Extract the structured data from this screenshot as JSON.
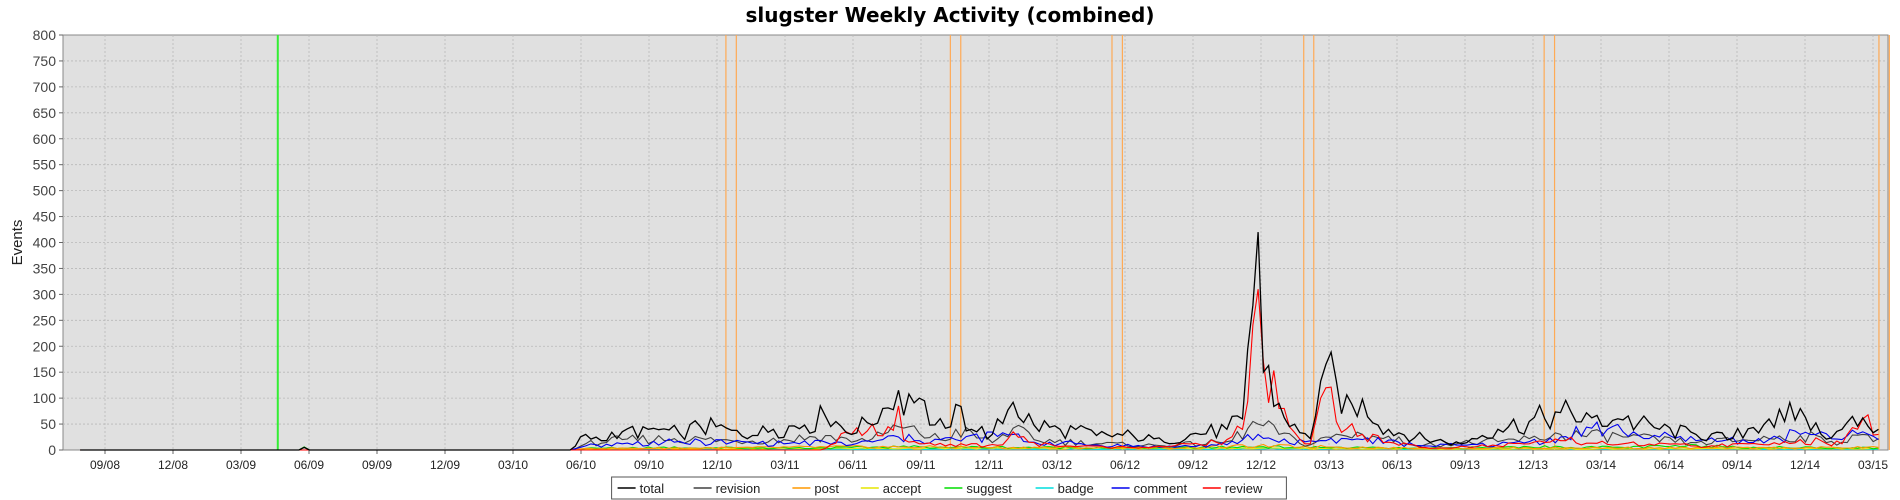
{
  "chart_data": {
    "type": "line",
    "title": "slugster Weekly Activity (combined)",
    "xlabel": "",
    "ylabel": "Events",
    "ylim": [
      0,
      800
    ],
    "y_ticks": [
      0,
      50,
      100,
      150,
      200,
      250,
      300,
      350,
      400,
      450,
      500,
      550,
      600,
      650,
      700,
      750,
      800
    ],
    "grid": true,
    "legend_position": "bottom",
    "x_tick_labels": [
      "09/08",
      "12/08",
      "03/09",
      "06/09",
      "09/09",
      "12/09",
      "03/10",
      "06/10",
      "09/10",
      "12/10",
      "03/11",
      "06/11",
      "09/11",
      "12/11",
      "03/12",
      "06/12",
      "09/12",
      "12/12",
      "03/13",
      "06/13",
      "09/13",
      "12/13",
      "03/14",
      "06/14",
      "09/14",
      "12/14",
      "03/15"
    ],
    "x_start_tick": "09/08",
    "x_end": "03/15",
    "week_count": 345,
    "marker_lines": {
      "green": [
        "2009-04-20"
      ],
      "orange": [
        "2010-12-13",
        "2010-12-27",
        "2011-10-10",
        "2011-10-24",
        "2012-05-14",
        "2012-05-28",
        "2013-01-28",
        "2013-02-11",
        "2013-12-16",
        "2013-12-30",
        "2015-03-09",
        "2015-03-23"
      ]
    },
    "colors": {
      "total": "#000000",
      "revision": "#404040",
      "post": "#ff9900",
      "accept": "#e6e600",
      "suggest": "#00dd00",
      "badge": "#00dddd",
      "comment": "#0000ee",
      "review": "#ff0000"
    },
    "series": [
      {
        "name": "total",
        "keypoints": [
          [
            0,
            0
          ],
          [
            60,
            0
          ],
          [
            62,
            5
          ],
          [
            64,
            0
          ],
          [
            136,
            0
          ],
          [
            140,
            30
          ],
          [
            145,
            18
          ],
          [
            150,
            35
          ],
          [
            158,
            40
          ],
          [
            166,
            32
          ],
          [
            172,
            45
          ],
          [
            180,
            38
          ],
          [
            186,
            28
          ],
          [
            192,
            40
          ],
          [
            200,
            48
          ],
          [
            207,
            65
          ],
          [
            214,
            30
          ],
          [
            222,
            80
          ],
          [
            226,
            115
          ],
          [
            232,
            100
          ],
          [
            236,
            48
          ],
          [
            240,
            42
          ],
          [
            242,
            88
          ],
          [
            247,
            40
          ],
          [
            253,
            30
          ],
          [
            258,
            92
          ],
          [
            264,
            48
          ],
          [
            272,
            40
          ],
          [
            282,
            28
          ],
          [
            292,
            28
          ],
          [
            300,
            15
          ],
          [
            308,
            30
          ],
          [
            318,
            40
          ],
          [
            322,
            60
          ],
          [
            326,
            420
          ],
          [
            328,
            150
          ],
          [
            332,
            90
          ],
          [
            335,
            45
          ],
          [
            340,
            22
          ],
          [
            345,
            165
          ],
          [
            350,
            70
          ],
          [
            355,
            98
          ],
          [
            362,
            40
          ],
          [
            372,
            22
          ],
          [
            382,
            12
          ],
          [
            392,
            40
          ],
          [
            402,
            55
          ],
          [
            410,
            72
          ],
          [
            418,
            62
          ],
          [
            427,
            58
          ],
          [
            437,
            40
          ],
          [
            447,
            30
          ],
          [
            457,
            22
          ],
          [
            467,
            60
          ],
          [
            472,
            55
          ],
          [
            476,
            80
          ],
          [
            482,
            30
          ],
          [
            488,
            40
          ],
          [
            494,
            62
          ],
          [
            498,
            40
          ]
        ]
      },
      {
        "name": "revision",
        "keypoints": [
          [
            0,
            0
          ],
          [
            136,
            0
          ],
          [
            140,
            12
          ],
          [
            150,
            20
          ],
          [
            165,
            22
          ],
          [
            180,
            18
          ],
          [
            195,
            20
          ],
          [
            207,
            28
          ],
          [
            214,
            15
          ],
          [
            222,
            30
          ],
          [
            226,
            45
          ],
          [
            232,
            32
          ],
          [
            240,
            18
          ],
          [
            242,
            40
          ],
          [
            253,
            14
          ],
          [
            258,
            42
          ],
          [
            264,
            20
          ],
          [
            282,
            12
          ],
          [
            300,
            8
          ],
          [
            318,
            16
          ],
          [
            326,
            50
          ],
          [
            332,
            30
          ],
          [
            340,
            10
          ],
          [
            345,
            25
          ],
          [
            355,
            30
          ],
          [
            372,
            10
          ],
          [
            392,
            16
          ],
          [
            402,
            22
          ],
          [
            410,
            30
          ],
          [
            427,
            25
          ],
          [
            447,
            14
          ],
          [
            467,
            22
          ],
          [
            476,
            28
          ],
          [
            488,
            15
          ],
          [
            494,
            30
          ],
          [
            498,
            22
          ]
        ]
      },
      {
        "name": "post",
        "keypoints": [
          [
            0,
            0
          ],
          [
            136,
            0
          ],
          [
            140,
            3
          ],
          [
            180,
            4
          ],
          [
            207,
            6
          ],
          [
            226,
            6
          ],
          [
            258,
            5
          ],
          [
            300,
            4
          ],
          [
            326,
            8
          ],
          [
            345,
            6
          ],
          [
            372,
            3
          ],
          [
            402,
            4
          ],
          [
            427,
            4
          ],
          [
            467,
            4
          ],
          [
            498,
            5
          ]
        ]
      },
      {
        "name": "accept",
        "keypoints": [
          [
            0,
            0
          ],
          [
            136,
            0
          ],
          [
            140,
            2
          ],
          [
            207,
            3
          ],
          [
            258,
            3
          ],
          [
            326,
            3
          ],
          [
            372,
            2
          ],
          [
            427,
            2
          ],
          [
            498,
            3
          ]
        ]
      },
      {
        "name": "suggest",
        "keypoints": [
          [
            0,
            0
          ],
          [
            60,
            0
          ],
          [
            62,
            6
          ],
          [
            64,
            0
          ],
          [
            136,
            0
          ],
          [
            140,
            3
          ],
          [
            160,
            5
          ],
          [
            185,
            4
          ],
          [
            207,
            4
          ],
          [
            226,
            6
          ],
          [
            258,
            5
          ],
          [
            300,
            4
          ],
          [
            326,
            6
          ],
          [
            345,
            5
          ],
          [
            372,
            3
          ],
          [
            402,
            6
          ],
          [
            427,
            5
          ],
          [
            450,
            8
          ],
          [
            467,
            5
          ],
          [
            498,
            4
          ]
        ]
      },
      {
        "name": "badge",
        "keypoints": [
          [
            0,
            0
          ],
          [
            136,
            0
          ],
          [
            140,
            1
          ],
          [
            258,
            2
          ],
          [
            326,
            2
          ],
          [
            400,
            2
          ],
          [
            498,
            2
          ]
        ]
      },
      {
        "name": "comment",
        "keypoints": [
          [
            0,
            0
          ],
          [
            136,
            0
          ],
          [
            140,
            8
          ],
          [
            150,
            12
          ],
          [
            165,
            15
          ],
          [
            180,
            15
          ],
          [
            195,
            12
          ],
          [
            207,
            15
          ],
          [
            214,
            10
          ],
          [
            222,
            20
          ],
          [
            226,
            25
          ],
          [
            232,
            18
          ],
          [
            242,
            20
          ],
          [
            258,
            30
          ],
          [
            264,
            15
          ],
          [
            282,
            10
          ],
          [
            300,
            6
          ],
          [
            318,
            10
          ],
          [
            326,
            30
          ],
          [
            332,
            15
          ],
          [
            345,
            18
          ],
          [
            355,
            20
          ],
          [
            372,
            8
          ],
          [
            392,
            10
          ],
          [
            402,
            16
          ],
          [
            410,
            25
          ],
          [
            418,
            42
          ],
          [
            427,
            35
          ],
          [
            437,
            25
          ],
          [
            447,
            18
          ],
          [
            467,
            20
          ],
          [
            476,
            30
          ],
          [
            488,
            20
          ],
          [
            494,
            35
          ],
          [
            498,
            20
          ]
        ]
      },
      {
        "name": "review",
        "keypoints": [
          [
            0,
            0
          ],
          [
            136,
            0
          ],
          [
            205,
            0
          ],
          [
            208,
            10
          ],
          [
            212,
            35
          ],
          [
            216,
            28
          ],
          [
            220,
            50
          ],
          [
            224,
            45
          ],
          [
            226,
            85
          ],
          [
            228,
            20
          ],
          [
            232,
            12
          ],
          [
            240,
            8
          ],
          [
            255,
            10
          ],
          [
            258,
            35
          ],
          [
            262,
            15
          ],
          [
            270,
            8
          ],
          [
            290,
            5
          ],
          [
            310,
            10
          ],
          [
            318,
            20
          ],
          [
            322,
            40
          ],
          [
            326,
            310
          ],
          [
            328,
            170
          ],
          [
            332,
            80
          ],
          [
            335,
            45
          ],
          [
            340,
            12
          ],
          [
            345,
            120
          ],
          [
            348,
            55
          ],
          [
            355,
            30
          ],
          [
            362,
            15
          ],
          [
            372,
            5
          ],
          [
            392,
            8
          ],
          [
            402,
            12
          ],
          [
            410,
            18
          ],
          [
            427,
            12
          ],
          [
            447,
            8
          ],
          [
            467,
            10
          ],
          [
            476,
            20
          ],
          [
            488,
            12
          ],
          [
            494,
            60
          ],
          [
            498,
            30
          ]
        ]
      }
    ]
  }
}
